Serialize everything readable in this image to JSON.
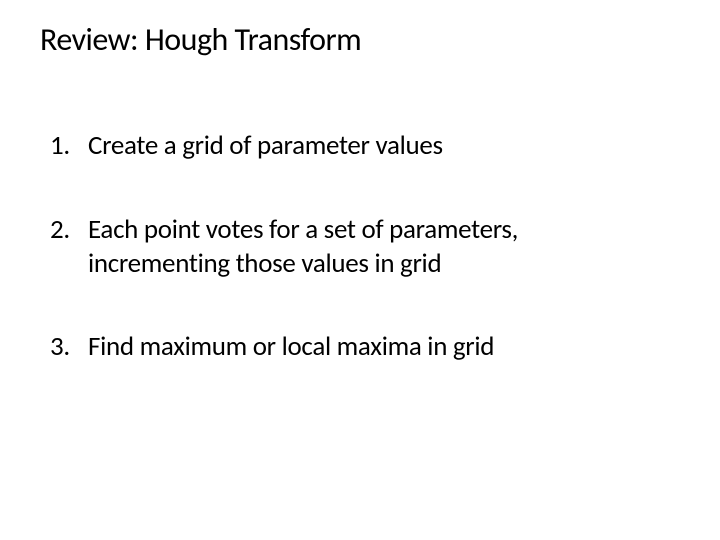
{
  "slide": {
    "title": "Review: Hough Transform",
    "items": [
      {
        "number": "1.",
        "text": "Create a grid of parameter values"
      },
      {
        "number": "2.",
        "text": "Each point votes for a set of parameters, incrementing those values in grid"
      },
      {
        "number": "3.",
        "text": "Find maximum or local maxima in grid"
      }
    ],
    "title_fontsize": 32,
    "body_fontsize": 27,
    "text_color": "#000000",
    "background_color": "#ffffff"
  }
}
